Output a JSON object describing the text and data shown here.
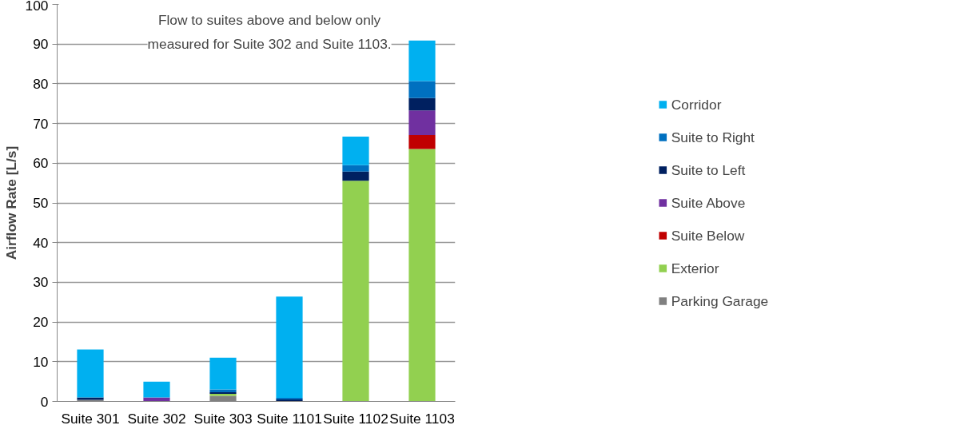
{
  "chart_data": {
    "type": "bar",
    "stacked": true,
    "ylabel": "Airflow Rate [L/s]",
    "categories": [
      "Suite 301",
      "Suite 302",
      "Suite 303",
      "Suite 1101",
      "Suite 1102",
      "Suite 1103"
    ],
    "series": [
      {
        "name": "Parking Garage",
        "color": "#808080",
        "values": [
          0.4,
          0,
          1.4,
          0,
          0,
          0
        ]
      },
      {
        "name": "Exterior",
        "color": "#92d050",
        "values": [
          0,
          0,
          0.5,
          0,
          55.6,
          63.6
        ]
      },
      {
        "name": "Suite Below",
        "color": "#c00000",
        "values": [
          0,
          0,
          0,
          0,
          0,
          3.5
        ]
      },
      {
        "name": "Suite Above",
        "color": "#7030a0",
        "values": [
          0,
          1.0,
          0,
          0,
          0,
          6.2
        ]
      },
      {
        "name": "Suite to Left",
        "color": "#002060",
        "values": [
          0.6,
          0,
          0.4,
          0.5,
          2.3,
          3.1
        ]
      },
      {
        "name": "Suite to Right",
        "color": "#0070c0",
        "values": [
          0,
          0,
          0.7,
          0.4,
          1.6,
          4.3
        ]
      },
      {
        "name": "Corridor",
        "color": "#00b0f0",
        "values": [
          12.1,
          4.0,
          8.0,
          25.5,
          7.2,
          10.2
        ]
      }
    ],
    "ylim": [
      0,
      100
    ],
    "yticks": [
      0,
      10,
      20,
      30,
      40,
      50,
      60,
      70,
      80,
      90,
      100
    ],
    "grid": "y",
    "legend": "right",
    "annotations": [
      "Flow to suites above and below only\nmeasured for Suite 302 and Suite 1103."
    ]
  }
}
